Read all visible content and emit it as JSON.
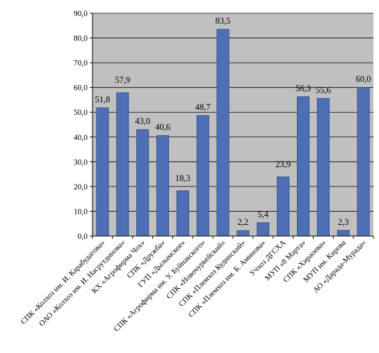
{
  "chart_data": {
    "type": "bar",
    "categories": [
      "СПК «Колхоз им. И. Карабудагова»",
      "ОАО «Колхоз им. И. Насрутдинова»",
      "КХ «Агрофирма Чох»",
      "СПК «Дружба»",
      "ГУП «Дылымское»",
      "СПК «Агрофирма им. У. Буйнакского»",
      "СПК «Новочуркейский»",
      "СПК «Племхоз Кудинский»",
      "СПК «Племхоз им. Б. Аминова»",
      "Учхоз ДГСХА",
      "МУП «8 Марта»",
      "СПК «Хираоева»",
      "МУП им. Кирова",
      "АО «Дарада-Мурада»"
    ],
    "values": [
      51.8,
      57.9,
      43.0,
      40.6,
      18.3,
      48.7,
      83.5,
      2.2,
      5.4,
      23.9,
      56.3,
      55.6,
      2.3,
      60.0
    ],
    "value_labels": [
      "51,8",
      "57,9",
      "43,0",
      "40,6",
      "18,3",
      "48,7",
      "83,5",
      "2,2",
      "5,4",
      "23,9",
      "56,3",
      "55,6",
      "2,3",
      "60,0"
    ],
    "y_ticks": [
      "0,0",
      "10,0",
      "20,0",
      "30,0",
      "40,0",
      "50,0",
      "60,0",
      "70,0",
      "80,0",
      "90,0"
    ],
    "ylim": [
      0,
      90
    ],
    "title": "",
    "xlabel": "",
    "ylabel": "",
    "grid": true,
    "bar_color": "#4f6fb5",
    "bar_edge_color": "#2f4a86",
    "plot_background": "#c0c0c0"
  }
}
